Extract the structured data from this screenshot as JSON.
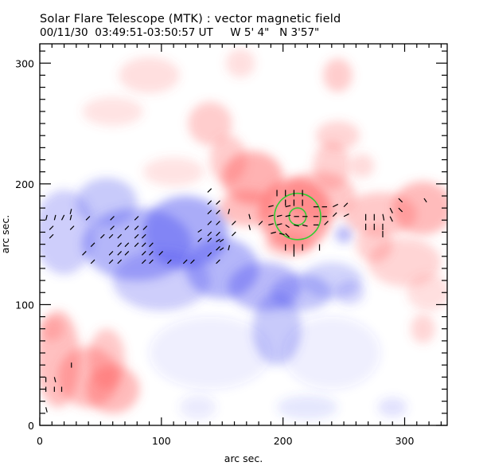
{
  "header": {
    "title": "Solar Flare Telescope (MTK) : vector magnetic field",
    "date": "00/11/30",
    "time_range": "03:49:51-03:50:57 UT",
    "position": "W 5' 4\"   N 3'57\""
  },
  "chart_data": {
    "type": "heatmap",
    "title": "Solar Flare Telescope (MTK) : vector magnetic field",
    "xlabel": "arc sec.",
    "ylabel": "arc sec.",
    "xlim": [
      0,
      335
    ],
    "ylim": [
      0,
      316
    ],
    "xticks": [
      0,
      100,
      200,
      300
    ],
    "yticks": [
      0,
      100,
      200,
      300
    ],
    "xtick_labels": [
      "0",
      "100",
      "200",
      "300"
    ],
    "ytick_labels": [
      "0",
      "100",
      "200",
      "300"
    ],
    "minor_tick_step": 10,
    "colors": {
      "positive_polarity": "#ff5a5a",
      "negative_polarity": "#4a4ef0",
      "circle": "#33cc33",
      "vector": "#000000"
    },
    "positive_regions": [
      {
        "x": 15,
        "y": 55,
        "rx": 18,
        "ry": 40,
        "s": 0.7
      },
      {
        "x": 40,
        "y": 40,
        "rx": 25,
        "ry": 25,
        "s": 0.7
      },
      {
        "x": 60,
        "y": 30,
        "rx": 22,
        "ry": 20,
        "s": 0.75
      },
      {
        "x": 55,
        "y": 55,
        "rx": 15,
        "ry": 25,
        "s": 0.6
      },
      {
        "x": 10,
        "y": 80,
        "rx": 10,
        "ry": 10,
        "s": 0.5
      },
      {
        "x": 90,
        "y": 290,
        "rx": 25,
        "ry": 15,
        "s": 0.35
      },
      {
        "x": 60,
        "y": 260,
        "rx": 25,
        "ry": 12,
        "s": 0.3
      },
      {
        "x": 165,
        "y": 300,
        "rx": 12,
        "ry": 12,
        "s": 0.35
      },
      {
        "x": 140,
        "y": 250,
        "rx": 18,
        "ry": 18,
        "s": 0.55
      },
      {
        "x": 110,
        "y": 210,
        "rx": 25,
        "ry": 12,
        "s": 0.3
      },
      {
        "x": 155,
        "y": 220,
        "rx": 15,
        "ry": 20,
        "s": 0.55
      },
      {
        "x": 175,
        "y": 205,
        "rx": 25,
        "ry": 22,
        "s": 0.85
      },
      {
        "x": 170,
        "y": 180,
        "rx": 22,
        "ry": 15,
        "s": 0.7
      },
      {
        "x": 210,
        "y": 175,
        "rx": 30,
        "ry": 30,
        "s": 1.0
      },
      {
        "x": 230,
        "y": 190,
        "rx": 30,
        "ry": 20,
        "s": 0.6
      },
      {
        "x": 240,
        "y": 215,
        "rx": 15,
        "ry": 20,
        "s": 0.5
      },
      {
        "x": 245,
        "y": 290,
        "rx": 12,
        "ry": 14,
        "s": 0.55
      },
      {
        "x": 245,
        "y": 240,
        "rx": 18,
        "ry": 12,
        "s": 0.45
      },
      {
        "x": 265,
        "y": 215,
        "rx": 10,
        "ry": 10,
        "s": 0.4
      },
      {
        "x": 280,
        "y": 175,
        "rx": 30,
        "ry": 18,
        "s": 0.6
      },
      {
        "x": 315,
        "y": 180,
        "rx": 25,
        "ry": 22,
        "s": 0.75
      },
      {
        "x": 275,
        "y": 150,
        "rx": 15,
        "ry": 15,
        "s": 0.5
      },
      {
        "x": 300,
        "y": 135,
        "rx": 30,
        "ry": 20,
        "s": 0.45
      },
      {
        "x": 320,
        "y": 110,
        "rx": 18,
        "ry": 15,
        "s": 0.35
      },
      {
        "x": 315,
        "y": 80,
        "rx": 10,
        "ry": 12,
        "s": 0.45
      },
      {
        "x": 205,
        "y": 150,
        "rx": 20,
        "ry": 10,
        "s": 0.55
      }
    ],
    "negative_regions": [
      {
        "x": 20,
        "y": 160,
        "rx": 25,
        "ry": 35,
        "s": 0.5
      },
      {
        "x": 55,
        "y": 185,
        "rx": 25,
        "ry": 20,
        "s": 0.55
      },
      {
        "x": 80,
        "y": 150,
        "rx": 45,
        "ry": 30,
        "s": 0.75
      },
      {
        "x": 120,
        "y": 160,
        "rx": 35,
        "ry": 30,
        "s": 0.85
      },
      {
        "x": 100,
        "y": 120,
        "rx": 40,
        "ry": 25,
        "s": 0.5
      },
      {
        "x": 150,
        "y": 130,
        "rx": 30,
        "ry": 25,
        "s": 0.75
      },
      {
        "x": 185,
        "y": 115,
        "rx": 30,
        "ry": 20,
        "s": 0.7
      },
      {
        "x": 215,
        "y": 110,
        "rx": 25,
        "ry": 15,
        "s": 0.6
      },
      {
        "x": 195,
        "y": 80,
        "rx": 20,
        "ry": 30,
        "s": 0.55
      },
      {
        "x": 240,
        "y": 120,
        "rx": 25,
        "ry": 15,
        "s": 0.45
      },
      {
        "x": 255,
        "y": 110,
        "rx": 12,
        "ry": 10,
        "s": 0.4
      },
      {
        "x": 250,
        "y": 158,
        "rx": 7,
        "ry": 7,
        "s": 0.7
      },
      {
        "x": 140,
        "y": 60,
        "rx": 50,
        "ry": 30,
        "s": 0.15
      },
      {
        "x": 240,
        "y": 60,
        "rx": 40,
        "ry": 30,
        "s": 0.15
      },
      {
        "x": 220,
        "y": 15,
        "rx": 25,
        "ry": 10,
        "s": 0.25
      },
      {
        "x": 290,
        "y": 15,
        "rx": 12,
        "ry": 8,
        "s": 0.3
      },
      {
        "x": 130,
        "y": 15,
        "rx": 15,
        "ry": 10,
        "s": 0.2
      }
    ],
    "circles": [
      {
        "x": 212,
        "y": 173,
        "r": 19
      },
      {
        "x": 212,
        "y": 173,
        "r": 7
      }
    ],
    "vectors": [
      {
        "x": 5,
        "y": 170,
        "dx": 1,
        "dy": -4
      },
      {
        "x": 12,
        "y": 170,
        "dx": 1,
        "dy": -4
      },
      {
        "x": 18,
        "y": 170,
        "dx": 2,
        "dy": -4
      },
      {
        "x": 25,
        "y": 170,
        "dx": 1,
        "dy": -4
      },
      {
        "x": 25,
        "y": 175,
        "dx": 1,
        "dy": -4
      },
      {
        "x": 38,
        "y": 170,
        "dx": 3,
        "dy": -3
      },
      {
        "x": 58,
        "y": 170,
        "dx": 3,
        "dy": -3
      },
      {
        "x": 78,
        "y": 170,
        "dx": 3,
        "dy": -3
      },
      {
        "x": 8,
        "y": 162,
        "dx": 3,
        "dy": -3
      },
      {
        "x": 25,
        "y": 162,
        "dx": 3,
        "dy": -3
      },
      {
        "x": 58,
        "y": 162,
        "dx": 3,
        "dy": -3
      },
      {
        "x": 70,
        "y": 162,
        "dx": 3,
        "dy": -3
      },
      {
        "x": 78,
        "y": 162,
        "dx": 3,
        "dy": -3
      },
      {
        "x": 85,
        "y": 162,
        "dx": 3,
        "dy": -3
      },
      {
        "x": 8,
        "y": 155,
        "dx": 3,
        "dy": -3
      },
      {
        "x": 50,
        "y": 155,
        "dx": 3,
        "dy": -3
      },
      {
        "x": 57,
        "y": 155,
        "dx": 3,
        "dy": -3
      },
      {
        "x": 64,
        "y": 155,
        "dx": 3,
        "dy": -3
      },
      {
        "x": 78,
        "y": 155,
        "dx": 3,
        "dy": -3
      },
      {
        "x": 84,
        "y": 155,
        "dx": 3,
        "dy": -3
      },
      {
        "x": 42,
        "y": 148,
        "dx": 3,
        "dy": -3
      },
      {
        "x": 64,
        "y": 148,
        "dx": 3,
        "dy": -3
      },
      {
        "x": 70,
        "y": 148,
        "dx": 3,
        "dy": -3
      },
      {
        "x": 78,
        "y": 148,
        "dx": 3,
        "dy": -3
      },
      {
        "x": 84,
        "y": 148,
        "dx": 3,
        "dy": -3
      },
      {
        "x": 90,
        "y": 148,
        "dx": 3,
        "dy": -3
      },
      {
        "x": 35,
        "y": 141,
        "dx": 3,
        "dy": -3
      },
      {
        "x": 57,
        "y": 141,
        "dx": 3,
        "dy": -3
      },
      {
        "x": 64,
        "y": 141,
        "dx": 3,
        "dy": -3
      },
      {
        "x": 70,
        "y": 141,
        "dx": 3,
        "dy": -3
      },
      {
        "x": 84,
        "y": 141,
        "dx": 3,
        "dy": -3
      },
      {
        "x": 90,
        "y": 141,
        "dx": 3,
        "dy": -3
      },
      {
        "x": 98,
        "y": 141,
        "dx": 3,
        "dy": -3
      },
      {
        "x": 42,
        "y": 134,
        "dx": 3,
        "dy": -3
      },
      {
        "x": 57,
        "y": 134,
        "dx": 3,
        "dy": -3
      },
      {
        "x": 64,
        "y": 134,
        "dx": 3,
        "dy": -3
      },
      {
        "x": 84,
        "y": 134,
        "dx": 3,
        "dy": -3
      },
      {
        "x": 90,
        "y": 134,
        "dx": 3,
        "dy": -3
      },
      {
        "x": 105,
        "y": 134,
        "dx": 3,
        "dy": -3
      },
      {
        "x": 118,
        "y": 134,
        "dx": 3,
        "dy": -3
      },
      {
        "x": 124,
        "y": 134,
        "dx": 3,
        "dy": -3
      },
      {
        "x": 145,
        "y": 134,
        "dx": 3,
        "dy": -3
      },
      {
        "x": 138,
        "y": 193,
        "dx": 3,
        "dy": -3
      },
      {
        "x": 138,
        "y": 183,
        "dx": 3,
        "dy": -3
      },
      {
        "x": 145,
        "y": 183,
        "dx": 3,
        "dy": -3
      },
      {
        "x": 138,
        "y": 175,
        "dx": 3,
        "dy": -3
      },
      {
        "x": 145,
        "y": 175,
        "dx": 3,
        "dy": -3
      },
      {
        "x": 138,
        "y": 166,
        "dx": 3,
        "dy": -3
      },
      {
        "x": 145,
        "y": 166,
        "dx": 3,
        "dy": -3
      },
      {
        "x": 130,
        "y": 160,
        "dx": 3,
        "dy": -2
      },
      {
        "x": 138,
        "y": 157,
        "dx": 3,
        "dy": -3
      },
      {
        "x": 145,
        "y": 157,
        "dx": 3,
        "dy": -3
      },
      {
        "x": 130,
        "y": 152,
        "dx": 3,
        "dy": -3
      },
      {
        "x": 138,
        "y": 152,
        "dx": 3,
        "dy": -3
      },
      {
        "x": 145,
        "y": 152,
        "dx": 3,
        "dy": -2
      },
      {
        "x": 148,
        "y": 152,
        "dx": 3,
        "dy": -2
      },
      {
        "x": 145,
        "y": 145,
        "dx": 3,
        "dy": -3
      },
      {
        "x": 148,
        "y": 145,
        "dx": 3,
        "dy": -2
      },
      {
        "x": 138,
        "y": 140,
        "dx": 3,
        "dy": -3
      },
      {
        "x": 155,
        "y": 145,
        "dx": 1,
        "dy": -4
      },
      {
        "x": 155,
        "y": 175,
        "dx": 1,
        "dy": -4
      },
      {
        "x": 158,
        "y": 166,
        "dx": 3,
        "dy": -3
      },
      {
        "x": 158,
        "y": 157,
        "dx": 3,
        "dy": -3
      },
      {
        "x": 172,
        "y": 175,
        "dx": 1,
        "dy": 4
      },
      {
        "x": 172,
        "y": 166,
        "dx": 1,
        "dy": 4
      },
      {
        "x": 180,
        "y": 166,
        "dx": 3,
        "dy": -3
      },
      {
        "x": 195,
        "y": 195,
        "dx": 0,
        "dy": 5
      },
      {
        "x": 202,
        "y": 195,
        "dx": 0,
        "dy": 5
      },
      {
        "x": 209,
        "y": 195,
        "dx": 0,
        "dy": 5
      },
      {
        "x": 216,
        "y": 195,
        "dx": 0,
        "dy": 5
      },
      {
        "x": 202,
        "y": 187,
        "dx": 0,
        "dy": 5
      },
      {
        "x": 209,
        "y": 187,
        "dx": 0,
        "dy": 5
      },
      {
        "x": 216,
        "y": 187,
        "dx": 0,
        "dy": 5
      },
      {
        "x": 188,
        "y": 181,
        "dx": 4,
        "dy": -1
      },
      {
        "x": 202,
        "y": 181,
        "dx": 4,
        "dy": -1
      },
      {
        "x": 225,
        "y": 181,
        "dx": 4,
        "dy": 0
      },
      {
        "x": 232,
        "y": 181,
        "dx": 4,
        "dy": 0
      },
      {
        "x": 241,
        "y": 181,
        "dx": 4,
        "dy": -2
      },
      {
        "x": 250,
        "y": 181,
        "dx": 3,
        "dy": -3
      },
      {
        "x": 188,
        "y": 173,
        "dx": 4,
        "dy": -1
      },
      {
        "x": 195,
        "y": 173,
        "dx": 4,
        "dy": -1
      },
      {
        "x": 202,
        "y": 173,
        "dx": 4,
        "dy": -1
      },
      {
        "x": 209,
        "y": 173,
        "dx": 4,
        "dy": 0
      },
      {
        "x": 216,
        "y": 173,
        "dx": 4,
        "dy": 0
      },
      {
        "x": 225,
        "y": 173,
        "dx": 4,
        "dy": 0
      },
      {
        "x": 232,
        "y": 173,
        "dx": 4,
        "dy": 0
      },
      {
        "x": 241,
        "y": 173,
        "dx": 3,
        "dy": -3
      },
      {
        "x": 250,
        "y": 173,
        "dx": 4,
        "dy": -2
      },
      {
        "x": 188,
        "y": 166,
        "dx": 4,
        "dy": -1
      },
      {
        "x": 195,
        "y": 166,
        "dx": 4,
        "dy": -1
      },
      {
        "x": 202,
        "y": 166,
        "dx": 3,
        "dy": 2
      },
      {
        "x": 209,
        "y": 166,
        "dx": 4,
        "dy": 1
      },
      {
        "x": 216,
        "y": 166,
        "dx": 4,
        "dy": 1
      },
      {
        "x": 225,
        "y": 166,
        "dx": 4,
        "dy": 0
      },
      {
        "x": 234,
        "y": 166,
        "dx": 3,
        "dy": -3
      },
      {
        "x": 190,
        "y": 159,
        "dx": 4,
        "dy": -1
      },
      {
        "x": 197,
        "y": 159,
        "dx": 4,
        "dy": 1
      },
      {
        "x": 202,
        "y": 159,
        "dx": 3,
        "dy": 3
      },
      {
        "x": 202,
        "y": 150,
        "dx": 0,
        "dy": 5
      },
      {
        "x": 209,
        "y": 150,
        "dx": 0,
        "dy": 5
      },
      {
        "x": 216,
        "y": 150,
        "dx": 0,
        "dy": 5
      },
      {
        "x": 230,
        "y": 150,
        "dx": 0,
        "dy": 5
      },
      {
        "x": 209,
        "y": 145,
        "dx": 0,
        "dy": 5
      },
      {
        "x": 268,
        "y": 175,
        "dx": 0,
        "dy": 5
      },
      {
        "x": 268,
        "y": 167,
        "dx": 0,
        "dy": 5
      },
      {
        "x": 275,
        "y": 175,
        "dx": 0,
        "dy": 5
      },
      {
        "x": 275,
        "y": 167,
        "dx": 0,
        "dy": 5
      },
      {
        "x": 282,
        "y": 175,
        "dx": 1,
        "dy": 5
      },
      {
        "x": 282,
        "y": 167,
        "dx": 0,
        "dy": 5
      },
      {
        "x": 282,
        "y": 161,
        "dx": 0,
        "dy": 5
      },
      {
        "x": 288,
        "y": 180,
        "dx": 2,
        "dy": 4
      },
      {
        "x": 288,
        "y": 173,
        "dx": 2,
        "dy": 4
      },
      {
        "x": 295,
        "y": 180,
        "dx": 3,
        "dy": 3
      },
      {
        "x": 295,
        "y": 188,
        "dx": 3,
        "dy": 3
      },
      {
        "x": 316,
        "y": 188,
        "dx": 2,
        "dy": 3
      },
      {
        "x": 5,
        "y": 40,
        "dx": 0,
        "dy": 4
      },
      {
        "x": 12,
        "y": 40,
        "dx": 1,
        "dy": 4
      },
      {
        "x": 5,
        "y": 32,
        "dx": 0,
        "dy": 4
      },
      {
        "x": 12,
        "y": 32,
        "dx": 0,
        "dy": 4
      },
      {
        "x": 18,
        "y": 32,
        "dx": 0,
        "dy": 4
      },
      {
        "x": 26,
        "y": 52,
        "dx": 0,
        "dy": 4
      },
      {
        "x": 5,
        "y": 15,
        "dx": 1,
        "dy": 4
      }
    ]
  }
}
